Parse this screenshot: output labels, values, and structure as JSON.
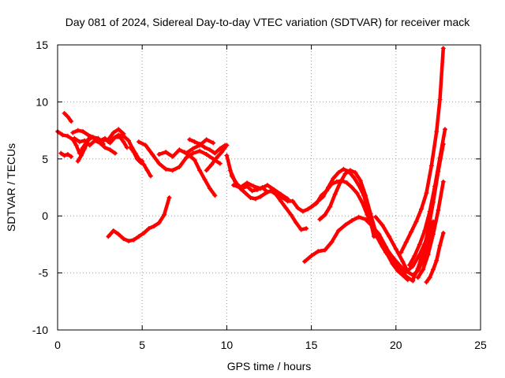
{
  "chart_data": {
    "type": "scatter",
    "title": "Day 081 of 2024, Sidereal Day-to-day VTEC variation (SDTVAR) for receiver mack",
    "xlabel": "GPS time / hours",
    "ylabel": "SDTVAR / TECUs",
    "xlim": [
      0,
      25
    ],
    "ylim": [
      -10,
      15
    ],
    "xticks": [
      0,
      5,
      10,
      15,
      20,
      25
    ],
    "yticks": [
      -10,
      -5,
      0,
      5,
      10,
      15
    ],
    "xtick_labels": [
      "0",
      "5",
      "10",
      "15",
      "20",
      "25"
    ],
    "ytick_labels": [
      "-10",
      "-5",
      "0",
      "5",
      "10",
      "15"
    ],
    "grid": true,
    "marker": "+",
    "color": "#ff0000",
    "series": [
      {
        "name": "trace-1",
        "x": [
          0.0,
          0.3,
          0.6,
          0.9,
          1.1,
          1.3,
          1.5,
          1.8,
          2.1,
          2.4,
          2.7
        ],
        "y": [
          7.4,
          7.1,
          7.0,
          6.7,
          6.2,
          5.5,
          6.0,
          6.7,
          6.9,
          6.8,
          6.3
        ]
      },
      {
        "name": "trace-2",
        "x": [
          0.2,
          0.4,
          0.6,
          0.8
        ],
        "y": [
          5.5,
          5.3,
          5.4,
          5.2
        ]
      },
      {
        "name": "trace-3",
        "x": [
          0.4,
          0.6,
          0.8
        ],
        "y": [
          9.0,
          8.7,
          8.3
        ]
      },
      {
        "name": "trace-4",
        "x": [
          0.9,
          1.2,
          1.5,
          1.8,
          2.1,
          2.4,
          2.7,
          3.0,
          3.3,
          3.6,
          3.9
        ],
        "y": [
          7.3,
          7.5,
          7.4,
          7.1,
          6.9,
          6.7,
          6.6,
          6.7,
          7.3,
          7.6,
          7.2
        ]
      },
      {
        "name": "trace-5",
        "x": [
          1.0,
          1.3,
          1.6,
          1.9,
          2.2,
          2.5,
          2.8,
          3.1,
          3.4
        ],
        "y": [
          6.8,
          6.5,
          6.6,
          6.2,
          6.6,
          6.4,
          6.0,
          5.8,
          5.5
        ]
      },
      {
        "name": "trace-6",
        "x": [
          1.2,
          1.4,
          1.6,
          1.8
        ],
        "y": [
          4.8,
          5.3,
          5.9,
          6.6
        ]
      },
      {
        "name": "trace-7",
        "x": [
          2.5,
          2.8,
          3.1,
          3.4,
          3.7,
          3.9,
          4.1
        ],
        "y": [
          6.6,
          6.8,
          6.4,
          6.9,
          6.9,
          6.5,
          6.0
        ]
      },
      {
        "name": "trace-8",
        "x": [
          3.0,
          3.3,
          3.6,
          3.9,
          4.2,
          4.4,
          4.6,
          4.8,
          5.0
        ],
        "y": [
          6.5,
          6.8,
          7.1,
          7.0,
          6.6,
          6.0,
          5.5,
          5.0,
          4.8
        ]
      },
      {
        "name": "trace-9",
        "x": [
          4.3,
          4.5,
          4.7,
          4.9,
          5.1,
          5.3,
          5.5
        ],
        "y": [
          6.0,
          5.6,
          5.0,
          4.7,
          4.5,
          4.0,
          3.5
        ]
      },
      {
        "name": "trace-10",
        "x": [
          4.8,
          5.2,
          5.6,
          6.0,
          6.4,
          6.8,
          7.2,
          7.6,
          8.0,
          8.4,
          8.8,
          9.2,
          9.6
        ],
        "y": [
          6.5,
          6.2,
          5.4,
          4.6,
          4.1,
          4.0,
          4.3,
          5.1,
          5.5,
          5.7,
          5.4,
          5.0,
          4.6
        ]
      },
      {
        "name": "trace-11",
        "x": [
          6.0,
          6.4,
          6.8,
          7.2,
          7.6,
          8.0,
          8.4,
          8.8,
          9.2
        ],
        "y": [
          5.4,
          5.6,
          5.2,
          5.8,
          5.5,
          5.9,
          6.2,
          6.7,
          6.4
        ]
      },
      {
        "name": "trace-12",
        "x": [
          7.8,
          8.1,
          8.4,
          8.7,
          9.0,
          9.3,
          9.6,
          9.9
        ],
        "y": [
          6.7,
          6.5,
          6.3,
          6.0,
          5.8,
          5.5,
          5.9,
          6.2
        ]
      },
      {
        "name": "trace-13",
        "x": [
          7.5,
          7.8,
          8.1,
          8.4,
          8.7,
          9.0,
          9.3
        ],
        "y": [
          5.6,
          5.3,
          4.9,
          4.0,
          3.2,
          2.4,
          1.8
        ]
      },
      {
        "name": "trace-14",
        "x": [
          8.8,
          9.1,
          9.4,
          9.7,
          10.0
        ],
        "y": [
          4.0,
          4.5,
          5.1,
          5.6,
          6.2
        ]
      },
      {
        "name": "trace-15",
        "x": [
          3.0,
          3.3,
          3.6,
          3.9,
          4.2,
          4.5,
          4.8,
          5.1,
          5.4,
          5.7,
          6.0,
          6.3,
          6.6
        ],
        "y": [
          -1.8,
          -1.3,
          -1.6,
          -2.0,
          -2.2,
          -2.1,
          -1.8,
          -1.5,
          -1.1,
          -0.9,
          -0.6,
          0.1,
          1.6
        ]
      },
      {
        "name": "trace-16",
        "x": [
          10.0,
          10.3,
          10.6,
          10.9,
          11.2,
          11.5,
          11.8,
          12.1,
          12.4,
          12.7,
          13.0,
          13.3,
          13.6,
          13.9,
          14.2,
          14.5,
          14.8,
          15.1,
          15.4,
          15.7,
          16.0,
          16.3,
          16.6,
          16.9,
          17.2,
          17.5,
          17.8,
          18.1,
          18.4,
          18.7
        ],
        "y": [
          5.3,
          3.5,
          2.8,
          2.4,
          2.6,
          2.2,
          2.3,
          2.5,
          2.1,
          2.2,
          1.9,
          1.6,
          1.3,
          1.3,
          0.7,
          0.4,
          0.6,
          0.9,
          1.3,
          1.7,
          2.5,
          3.3,
          3.8,
          4.1,
          3.9,
          3.4,
          2.7,
          1.8,
          0.2,
          -1.8
        ]
      },
      {
        "name": "trace-17",
        "x": [
          10.2,
          10.5,
          10.8,
          11.1,
          11.4,
          11.7,
          12.0,
          12.3,
          12.6,
          12.9,
          13.2,
          13.5,
          13.8,
          14.1,
          14.4,
          14.7
        ],
        "y": [
          4.0,
          3.0,
          2.4,
          2.0,
          1.6,
          1.5,
          1.7,
          2.0,
          2.2,
          1.9,
          1.3,
          0.7,
          0.1,
          -0.6,
          -1.2,
          -1.1
        ]
      },
      {
        "name": "trace-18",
        "x": [
          10.4,
          10.8,
          11.2,
          11.6,
          12.0,
          12.4,
          12.8,
          13.2,
          13.6
        ],
        "y": [
          2.7,
          2.5,
          2.9,
          2.6,
          2.4,
          2.7,
          2.3,
          1.9,
          1.5
        ]
      },
      {
        "name": "trace-19",
        "x": [
          15.0,
          15.3,
          15.6,
          15.9,
          16.2,
          16.5,
          16.8,
          17.1,
          17.4,
          17.7,
          18.0,
          18.3,
          18.6,
          18.9,
          19.2,
          19.5,
          19.8,
          20.1,
          20.4,
          20.7
        ],
        "y": [
          0.8,
          1.1,
          1.8,
          2.2,
          2.8,
          3.0,
          3.1,
          2.9,
          2.5,
          2.0,
          1.2,
          0.1,
          -1.0,
          -1.9,
          -2.7,
          -3.4,
          -4.2,
          -4.8,
          -5.2,
          -5.6
        ]
      },
      {
        "name": "trace-20",
        "x": [
          15.5,
          15.8,
          16.1,
          16.4,
          16.7,
          17.0,
          17.3,
          17.6,
          17.9,
          18.2,
          18.5,
          18.8,
          19.1,
          19.4
        ],
        "y": [
          -0.3,
          0.1,
          0.8,
          1.9,
          2.9,
          3.7,
          4.0,
          3.8,
          3.1,
          1.8,
          0.2,
          -1.4,
          -2.4,
          -3.2
        ]
      },
      {
        "name": "trace-21",
        "x": [
          14.6,
          15.0,
          15.4,
          15.8,
          16.2,
          16.6,
          17.0,
          17.4,
          17.8,
          18.2,
          18.6,
          19.0,
          19.4,
          19.8,
          20.2,
          20.6,
          21.0
        ],
        "y": [
          -4.0,
          -3.5,
          -3.1,
          -3.0,
          -2.3,
          -1.3,
          -0.8,
          -0.4,
          -0.1,
          -0.3,
          -0.9,
          -1.6,
          -2.7,
          -3.8,
          -4.6,
          -5.3,
          -5.7
        ]
      },
      {
        "name": "trace-22",
        "x": [
          18.8,
          19.2,
          19.6,
          20.0,
          20.4,
          20.7,
          21.0,
          21.3,
          21.6,
          21.9,
          22.2
        ],
        "y": [
          -0.1,
          -0.8,
          -1.8,
          -2.9,
          -4.0,
          -4.9,
          -5.2,
          -4.8,
          -3.9,
          -2.6,
          -1.0
        ]
      },
      {
        "name": "trace-23",
        "x": [
          19.4,
          19.8,
          20.2,
          20.6,
          21.0,
          21.4,
          21.8,
          22.2
        ],
        "y": [
          -2.8,
          -3.6,
          -4.3,
          -4.9,
          -4.4,
          -3.4,
          -2.1,
          -0.5
        ]
      },
      {
        "name": "trace-24",
        "x": [
          20.3,
          20.6,
          20.9,
          21.2,
          21.5,
          21.8,
          22.1,
          22.4,
          22.6,
          22.8
        ],
        "y": [
          -3.2,
          -2.3,
          -1.4,
          -0.5,
          0.6,
          2.0,
          4.4,
          7.4,
          10.2,
          14.7
        ]
      },
      {
        "name": "trace-25",
        "x": [
          20.8,
          21.1,
          21.4,
          21.7,
          22.0,
          22.3,
          22.6,
          22.9
        ],
        "y": [
          -4.3,
          -3.5,
          -2.5,
          -1.3,
          0.4,
          2.6,
          5.1,
          7.6
        ]
      },
      {
        "name": "trace-26",
        "x": [
          21.0,
          21.3,
          21.6,
          21.9,
          22.2,
          22.5,
          22.8
        ],
        "y": [
          -5.6,
          -4.6,
          -3.2,
          -1.3,
          1.2,
          3.9,
          6.3
        ]
      },
      {
        "name": "trace-27",
        "x": [
          21.3,
          21.6,
          21.9,
          22.2,
          22.5,
          22.8
        ],
        "y": [
          -5.4,
          -4.7,
          -3.4,
          -1.6,
          0.5,
          3.0
        ]
      },
      {
        "name": "trace-28",
        "x": [
          21.8,
          22.0,
          22.2,
          22.4,
          22.6,
          22.8
        ],
        "y": [
          -5.8,
          -5.4,
          -4.7,
          -3.9,
          -2.6,
          -1.5
        ]
      }
    ]
  }
}
